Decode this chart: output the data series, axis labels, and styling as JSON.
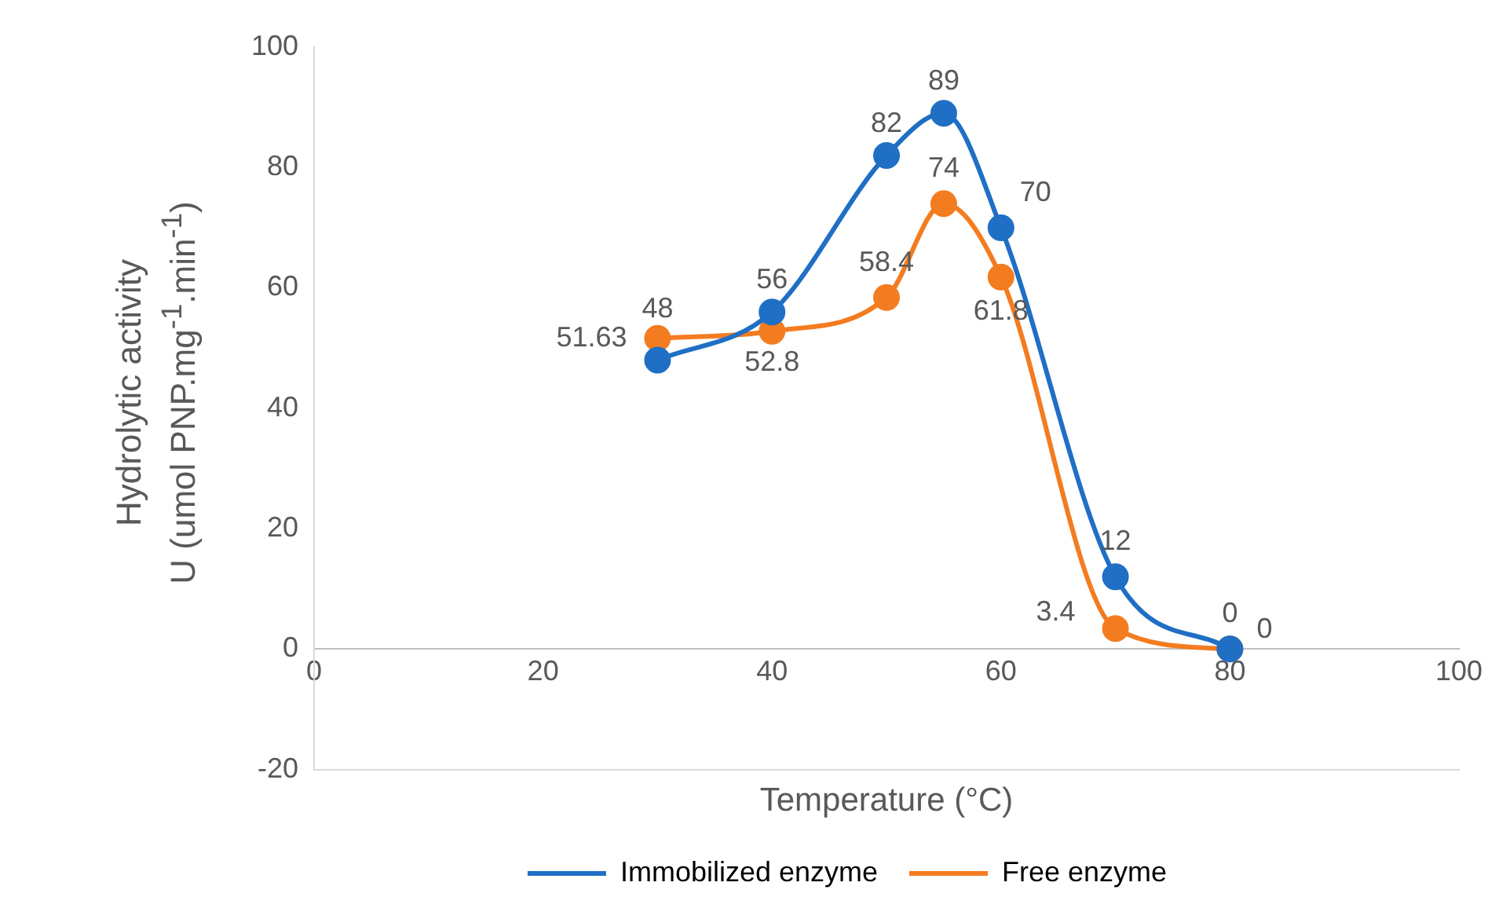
{
  "chart_data": {
    "type": "line",
    "xlabel": "Temperature (°C)",
    "ylabel": "Hydrolytic activity\nU (umol PNP.mg$^{-1}$.min$^{-1}$)",
    "x": [
      30,
      40,
      50,
      55,
      60,
      70,
      80
    ],
    "series": [
      {
        "name": "Immobilized enzyme",
        "color": "#1f6fc5",
        "values": [
          48,
          56,
          82,
          89,
          70,
          12,
          0
        ]
      },
      {
        "name": "Free enzyme",
        "color": "#f47c20",
        "values": [
          51.63,
          52.8,
          58.4,
          74,
          61.8,
          3.4,
          0
        ]
      }
    ],
    "xlim": [
      0,
      100
    ],
    "xticks": [
      0,
      20,
      40,
      60,
      80,
      100
    ],
    "ylim": [
      -20,
      100
    ],
    "yticks": [
      -20,
      0,
      20,
      40,
      60,
      80,
      100
    ],
    "grid": false,
    "legend": "bottom",
    "marker": "circle",
    "line_style": "solid",
    "data_labels": true
  }
}
